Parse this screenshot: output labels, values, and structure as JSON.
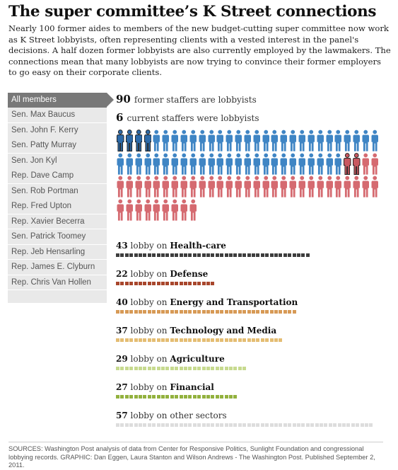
{
  "title": "The super committee’s K Street connections",
  "intro": "Nearly 100 former aides to members of the new budget-cutting super committee now work as K Street lobbyists, often representing clients with a vested interest in the panel's decisions. A half dozen former lobbyists are also currently employed by the lawmakers. The connections mean that many lobbyists are now trying to convince their former employers to go easy on their corporate clients.",
  "members": [
    {
      "label": "All members",
      "active": true
    },
    {
      "label": "Sen. Max Baucus",
      "active": false
    },
    {
      "label": "Sen. John F. Kerry",
      "active": false
    },
    {
      "label": "Sen. Patty Murray",
      "active": false
    },
    {
      "label": "Sen. Jon Kyl",
      "active": false
    },
    {
      "label": "Rep. Dave Camp",
      "active": false
    },
    {
      "label": "Sen. Rob Portman",
      "active": false
    },
    {
      "label": "Rep. Fred Upton",
      "active": false
    },
    {
      "label": "Rep. Xavier Becerra",
      "active": false
    },
    {
      "label": "Sen. Patrick Toomey",
      "active": false
    },
    {
      "label": "Rep. Jeb Hensarling",
      "active": false
    },
    {
      "label": "Rep. James E. Clyburn",
      "active": false
    },
    {
      "label": "Rep. Chris Van Hollen",
      "active": false
    }
  ],
  "stats": {
    "former_count": "90",
    "former_label": "former staffers are lobbyists",
    "current_count": "6",
    "current_label": "current staffers were lobbyists"
  },
  "pictogram": {
    "democrat_count": 54,
    "republican_count": 42,
    "highlighted_democrats": 4,
    "highlighted_republicans": 2,
    "democrat_color": "#3f85c4",
    "republican_color": "#d56a70",
    "icon_name": "person-icon"
  },
  "sectors": [
    {
      "count": "43",
      "pre": "lobby on",
      "name": "Health-care",
      "value": 43,
      "color": "#3d3d3d"
    },
    {
      "count": "22",
      "pre": "lobby on",
      "name": "Defense",
      "value": 22,
      "color": "#a8462c"
    },
    {
      "count": "40",
      "pre": "lobby on",
      "name": "Energy and Transportation",
      "value": 40,
      "color": "#d79a56"
    },
    {
      "count": "37",
      "pre": "lobby on",
      "name": "Technology and Media",
      "value": 37,
      "color": "#e4bd73"
    },
    {
      "count": "29",
      "pre": "lobby on",
      "name": "Agriculture",
      "value": 29,
      "color": "#c7da8f"
    },
    {
      "count": "27",
      "pre": "lobby on",
      "name": "Financial",
      "value": 27,
      "color": "#92b13e"
    },
    {
      "count": "57",
      "pre": "lobby on other sectors",
      "name": "",
      "value": 57,
      "color": "#dddddd"
    }
  ],
  "sources": "SOURCES: Washington Post analysis of data from Center for Responsive Politics, Sunlight Foundation and congressional lobbying records. GRAPHIC: Dan Eggen, Laura Stanton and Wilson Andrews - The Washington Post. Published September 2, 2011."
}
